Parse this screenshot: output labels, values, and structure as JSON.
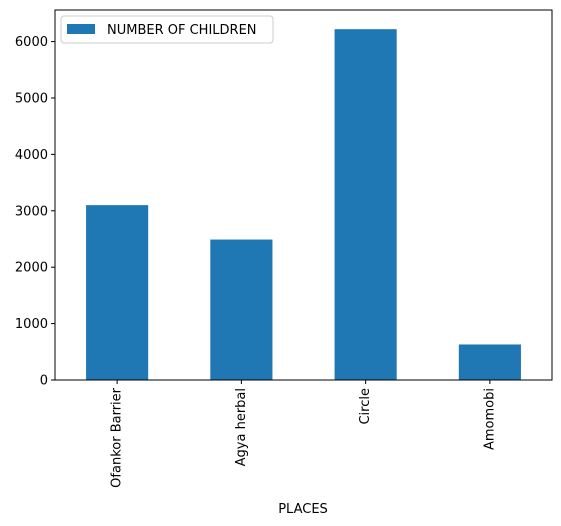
{
  "chart_data": {
    "type": "bar",
    "categories": [
      "Ofankor Barrier",
      "Agya herbal",
      "Circle",
      "Amomobi"
    ],
    "series": [
      {
        "name": "NUMBER OF CHILDREN",
        "values": [
          3100,
          2490,
          6220,
          630
        ],
        "color": "#1f77b4"
      }
    ],
    "xlabel": "PLACES",
    "ylabel": "",
    "ylim": [
      0,
      6560
    ],
    "yticks": [
      0,
      1000,
      2000,
      3000,
      4000,
      5000,
      6000
    ],
    "ytick_labels": [
      "0",
      "1000",
      "2000",
      "3000",
      "4000",
      "5000",
      "6000"
    ],
    "legend_position": "upper-left",
    "grid": false
  }
}
